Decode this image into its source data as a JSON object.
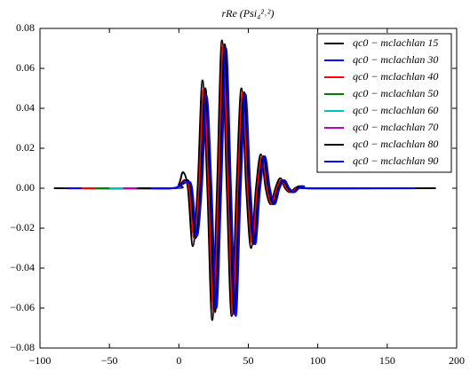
{
  "chart_data": {
    "type": "line",
    "title": "rRe (Psi₄²˒²)",
    "xlim": [
      -100,
      200
    ],
    "xticks": [
      {
        "value": -100,
        "label": "−100"
      },
      {
        "value": -50,
        "label": "−50"
      },
      0,
      50,
      100,
      150,
      200
    ],
    "ylim": [
      -0.08,
      0.08
    ],
    "yticks": [
      {
        "value": -0.08,
        "label": "−0.08"
      },
      {
        "value": -0.06,
        "label": "−0.06"
      },
      {
        "value": -0.04,
        "label": "−0.04"
      },
      {
        "value": -0.02,
        "label": "−0.02"
      },
      {
        "value": 0,
        "label": "0.00"
      },
      0.02,
      0.04,
      0.06,
      0.08
    ],
    "legend": "upper right",
    "series": [
      {
        "name": "qc0 − mclachlan 15",
        "color": "#000000",
        "x": [
          -90,
          -5,
          0,
          3,
          6.5,
          10,
          13.5,
          17,
          20.5,
          24,
          27.5,
          31,
          34.5,
          38,
          41.5,
          45,
          48.5,
          52,
          55.5,
          59,
          62.5,
          66,
          69.5,
          73,
          76.5,
          80,
          83.5,
          87,
          90.5,
          120
        ],
        "values": [
          0,
          0,
          0.002,
          0.008,
          0,
          -0.029,
          0,
          0.054,
          0,
          -0.066,
          0,
          0.074,
          0,
          -0.064,
          0,
          0.05,
          0,
          -0.03,
          0,
          0.017,
          0,
          -0.008,
          0,
          0.005,
          0,
          -0.002,
          0,
          0.001,
          0,
          0
        ]
      },
      {
        "name": "qc0 − mclachlan 30",
        "color": "#0000ff",
        "x": [
          -80,
          -5,
          0,
          4,
          7.5,
          11,
          14.5,
          18,
          21.5,
          25,
          28.5,
          32,
          35.5,
          39,
          42.5,
          46,
          49.5,
          53,
          56.5,
          60,
          63.5,
          67,
          70.5,
          74,
          77.5,
          81,
          84.5,
          88,
          91.5,
          130
        ],
        "values": [
          0,
          0,
          0.001,
          0.004,
          0,
          -0.025,
          0,
          0.05,
          0,
          -0.062,
          0,
          0.072,
          0,
          -0.063,
          0,
          0.048,
          0,
          -0.028,
          0,
          0.016,
          0,
          -0.008,
          0,
          0.004,
          0,
          -0.002,
          0,
          0.001,
          0,
          0
        ]
      },
      {
        "name": "qc0 − mclachlan 40",
        "color": "#ff0000",
        "x": [
          -70,
          -5,
          0,
          4,
          7.5,
          11,
          14.5,
          18,
          21.5,
          25,
          28.5,
          32,
          35.5,
          39,
          42.5,
          46,
          49.5,
          53,
          56.5,
          60,
          63.5,
          67,
          70.5,
          74,
          77.5,
          81,
          84.5,
          88,
          91.5,
          135
        ],
        "values": [
          0,
          0,
          0.001,
          0.004,
          0,
          -0.025,
          0,
          0.05,
          0,
          -0.062,
          0,
          0.072,
          0,
          -0.063,
          0,
          0.048,
          0,
          -0.028,
          0,
          0.016,
          0,
          -0.008,
          0,
          0.004,
          0,
          -0.002,
          0,
          0.001,
          0,
          0
        ]
      },
      {
        "name": "qc0 − mclachlan 50",
        "color": "#008000",
        "x": [
          -60,
          -5,
          0,
          5,
          8.5,
          12,
          15.5,
          19,
          22.5,
          26,
          29.5,
          33,
          36.5,
          40,
          43.5,
          47,
          50.5,
          54,
          57.5,
          61,
          64.5,
          68,
          71.5,
          75,
          78.5,
          82,
          85.5,
          89,
          92.5,
          155
        ],
        "values": [
          0,
          0,
          0.001,
          0.004,
          0,
          -0.025,
          0,
          0.05,
          0,
          -0.062,
          0,
          0.072,
          0,
          -0.063,
          0,
          0.048,
          0,
          -0.028,
          0,
          0.016,
          0,
          -0.008,
          0,
          0.004,
          0,
          -0.002,
          0,
          0.001,
          0,
          0
        ]
      },
      {
        "name": "qc0 − mclachlan 60",
        "color": "#00bfbf",
        "x": [
          -50,
          -5,
          0,
          5,
          8.5,
          12,
          15.5,
          19,
          22.5,
          26,
          29.5,
          33,
          36.5,
          40,
          43.5,
          47,
          50.5,
          54,
          57.5,
          61,
          64.5,
          68,
          71.5,
          75,
          78.5,
          82,
          85.5,
          89,
          92.5,
          140
        ],
        "values": [
          0,
          0,
          0.001,
          0.004,
          0,
          -0.025,
          0,
          0.05,
          0,
          -0.062,
          0,
          0.072,
          0,
          -0.063,
          0,
          0.048,
          0,
          -0.028,
          0,
          0.016,
          0,
          -0.008,
          0,
          0.004,
          0,
          -0.002,
          0,
          0.001,
          0,
          0
        ]
      },
      {
        "name": "qc0 − mclachlan 70",
        "color": "#bf00bf",
        "x": [
          -40,
          -5,
          0,
          5,
          8.5,
          12,
          15.5,
          19,
          22.5,
          26,
          29.5,
          33,
          36.5,
          40,
          43.5,
          47,
          50.5,
          54,
          57.5,
          61,
          64.5,
          68,
          71.5,
          75,
          78.5,
          82,
          85.5,
          89,
          92.5,
          150
        ],
        "values": [
          0,
          0,
          0.001,
          0.004,
          0,
          -0.025,
          0,
          0.05,
          0,
          -0.062,
          0,
          0.072,
          0,
          -0.063,
          0,
          0.048,
          0,
          -0.028,
          0,
          0.016,
          0,
          -0.008,
          0,
          0.004,
          0,
          -0.002,
          0,
          0.001,
          0,
          0
        ]
      },
      {
        "name": "qc0 − mclachlan 80",
        "color": "#000000",
        "x": [
          -30,
          -5,
          0,
          5,
          8.5,
          12,
          15.5,
          19,
          22.5,
          26,
          29.5,
          33,
          36.5,
          40,
          43.5,
          47,
          50.5,
          54,
          57.5,
          61,
          64.5,
          68,
          71.5,
          75,
          78.5,
          82,
          85.5,
          89,
          92.5,
          185
        ],
        "values": [
          0,
          0,
          0.001,
          0.004,
          0,
          -0.025,
          0,
          0.05,
          0,
          -0.062,
          0,
          0.072,
          0,
          -0.063,
          0,
          0.048,
          0,
          -0.028,
          0,
          0.016,
          0,
          -0.008,
          0,
          0.004,
          0,
          -0.002,
          0,
          0.001,
          0,
          0
        ]
      },
      {
        "name": "qc0 − mclachlan 90",
        "color": "#0000ff",
        "x": [
          -20,
          -5,
          0,
          6,
          9.5,
          13,
          16.5,
          20,
          23.5,
          27,
          30.5,
          34,
          37.5,
          41,
          44.5,
          48,
          51.5,
          55,
          58.5,
          62,
          65.5,
          69,
          72.5,
          76,
          79.5,
          83,
          86.5,
          90,
          93.5,
          170
        ],
        "values": [
          0,
          0,
          0.001,
          0.003,
          0,
          -0.024,
          0,
          0.046,
          0,
          -0.06,
          0,
          0.07,
          0,
          -0.064,
          0,
          0.047,
          0,
          -0.028,
          0,
          0.016,
          0,
          -0.008,
          0,
          0.004,
          0,
          -0.002,
          0,
          0.001,
          0,
          0
        ]
      }
    ]
  }
}
